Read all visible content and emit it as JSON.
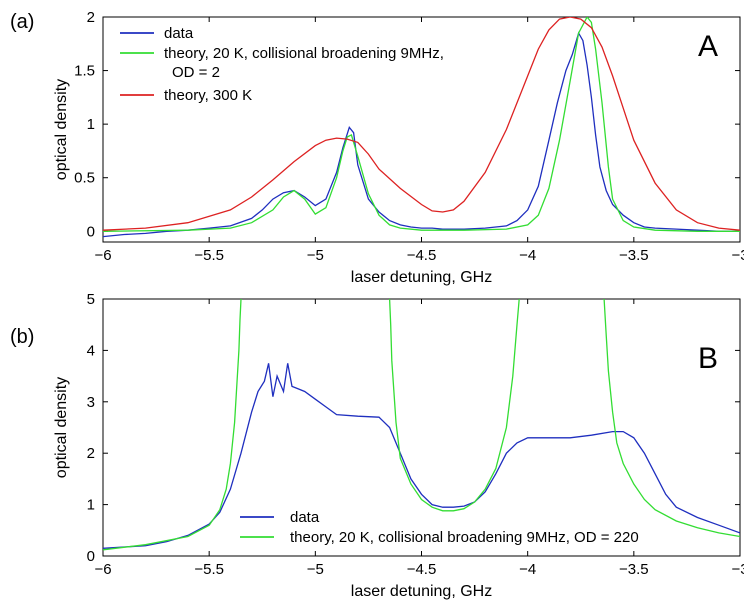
{
  "chart_data": [
    {
      "type": "line",
      "panel_label": "(a)",
      "corner_label": "A",
      "xlabel": "laser detuning, GHz",
      "ylabel": "optical density",
      "xlim": [
        -6,
        -3
      ],
      "ylim": [
        -0.1,
        2
      ],
      "xticks": [
        -6,
        -5.5,
        -5,
        -4.5,
        -4,
        -3.5,
        -3
      ],
      "xtick_labels": [
        "−6",
        "−5.5",
        "−5",
        "−4.5",
        "−4",
        "−3.5",
        "−3"
      ],
      "yticks": [
        0,
        0.5,
        1,
        1.5,
        2
      ],
      "ytick_labels": [
        "0",
        "0.5",
        "1",
        "1.5",
        "2"
      ],
      "grid": false,
      "legend_position": "top-left",
      "series": [
        {
          "name": "data",
          "color": "#1f2fbf",
          "x": [
            -6,
            -5.9,
            -5.8,
            -5.7,
            -5.6,
            -5.5,
            -5.4,
            -5.3,
            -5.25,
            -5.2,
            -5.15,
            -5.1,
            -5.05,
            -5.0,
            -4.95,
            -4.9,
            -4.87,
            -4.84,
            -4.82,
            -4.8,
            -4.75,
            -4.7,
            -4.65,
            -4.6,
            -4.55,
            -4.5,
            -4.45,
            -4.4,
            -4.35,
            -4.3,
            -4.2,
            -4.1,
            -4.05,
            -4.0,
            -3.95,
            -3.9,
            -3.86,
            -3.82,
            -3.79,
            -3.76,
            -3.74,
            -3.72,
            -3.7,
            -3.68,
            -3.66,
            -3.63,
            -3.6,
            -3.55,
            -3.5,
            -3.45,
            -3.4,
            -3.3,
            -3.2,
            -3.1,
            -3.0
          ],
          "y": [
            -0.05,
            -0.03,
            -0.02,
            0,
            0.01,
            0.03,
            0.05,
            0.12,
            0.2,
            0.3,
            0.36,
            0.38,
            0.32,
            0.24,
            0.3,
            0.55,
            0.78,
            0.97,
            0.92,
            0.62,
            0.3,
            0.18,
            0.1,
            0.06,
            0.04,
            0.03,
            0.03,
            0.02,
            0.02,
            0.02,
            0.03,
            0.05,
            0.1,
            0.2,
            0.42,
            0.85,
            1.2,
            1.5,
            1.65,
            1.85,
            1.78,
            1.55,
            1.25,
            0.9,
            0.6,
            0.38,
            0.25,
            0.15,
            0.08,
            0.04,
            0.03,
            0.02,
            0.01,
            0.0,
            0.0
          ]
        },
        {
          "name": "theory, 20 K, collisional broadening 9MHz,\nOD = 2",
          "color": "#33dd33",
          "x": [
            -6,
            -5.6,
            -5.4,
            -5.3,
            -5.2,
            -5.15,
            -5.1,
            -5.05,
            -5.0,
            -4.95,
            -4.9,
            -4.87,
            -4.85,
            -4.83,
            -4.8,
            -4.75,
            -4.7,
            -4.65,
            -4.6,
            -4.5,
            -4.3,
            -4.1,
            -4.0,
            -3.95,
            -3.9,
            -3.85,
            -3.8,
            -3.76,
            -3.72,
            -3.7,
            -3.68,
            -3.65,
            -3.62,
            -3.6,
            -3.55,
            -3.5,
            -3.4,
            -3.2,
            -3.0
          ],
          "y": [
            0,
            0.01,
            0.03,
            0.08,
            0.2,
            0.32,
            0.38,
            0.3,
            0.16,
            0.22,
            0.5,
            0.75,
            0.88,
            0.9,
            0.7,
            0.35,
            0.15,
            0.06,
            0.03,
            0.01,
            0.01,
            0.02,
            0.06,
            0.15,
            0.4,
            0.85,
            1.4,
            1.85,
            2.0,
            1.95,
            1.7,
            1.2,
            0.6,
            0.3,
            0.1,
            0.04,
            0.01,
            0.0,
            0.0
          ]
        },
        {
          "name": "theory, 300 K",
          "color": "#dd2222",
          "x": [
            -6,
            -5.8,
            -5.6,
            -5.4,
            -5.3,
            -5.2,
            -5.1,
            -5.0,
            -4.95,
            -4.9,
            -4.85,
            -4.8,
            -4.75,
            -4.7,
            -4.6,
            -4.5,
            -4.45,
            -4.4,
            -4.35,
            -4.3,
            -4.2,
            -4.1,
            -4.0,
            -3.95,
            -3.9,
            -3.85,
            -3.8,
            -3.75,
            -3.7,
            -3.65,
            -3.6,
            -3.55,
            -3.5,
            -3.4,
            -3.3,
            -3.2,
            -3.1,
            -3.0
          ],
          "y": [
            0.01,
            0.03,
            0.08,
            0.2,
            0.32,
            0.48,
            0.65,
            0.8,
            0.85,
            0.87,
            0.86,
            0.83,
            0.72,
            0.58,
            0.4,
            0.25,
            0.19,
            0.18,
            0.2,
            0.28,
            0.55,
            0.95,
            1.45,
            1.7,
            1.88,
            1.98,
            2.0,
            1.98,
            1.9,
            1.72,
            1.45,
            1.15,
            0.85,
            0.45,
            0.2,
            0.08,
            0.03,
            0.01
          ]
        }
      ]
    },
    {
      "type": "line",
      "panel_label": "(b)",
      "corner_label": "B",
      "xlabel": "laser detuning, GHz",
      "ylabel": "optical density",
      "xlim": [
        -6,
        -3
      ],
      "ylim": [
        0,
        5
      ],
      "xticks": [
        -6,
        -5.5,
        -5,
        -4.5,
        -4,
        -3.5,
        -3
      ],
      "xtick_labels": [
        "−6",
        "−5.5",
        "−5",
        "−4.5",
        "−4",
        "−3.5",
        "−3"
      ],
      "yticks": [
        0,
        1,
        2,
        3,
        4,
        5
      ],
      "ytick_labels": [
        "0",
        "1",
        "2",
        "3",
        "4",
        "5"
      ],
      "grid": false,
      "legend_position": "bottom-center",
      "series": [
        {
          "name": "data",
          "color": "#1f2fbf",
          "x": [
            -6,
            -5.8,
            -5.7,
            -5.6,
            -5.5,
            -5.45,
            -5.4,
            -5.35,
            -5.3,
            -5.27,
            -5.24,
            -5.22,
            -5.2,
            -5.18,
            -5.15,
            -5.13,
            -5.11,
            -5.08,
            -5.05,
            -5.0,
            -4.95,
            -4.9,
            -4.8,
            -4.7,
            -4.65,
            -4.6,
            -4.55,
            -4.5,
            -4.45,
            -4.4,
            -4.35,
            -4.3,
            -4.25,
            -4.2,
            -4.15,
            -4.1,
            -4.05,
            -4.0,
            -3.9,
            -3.8,
            -3.7,
            -3.6,
            -3.55,
            -3.5,
            -3.45,
            -3.4,
            -3.35,
            -3.3,
            -3.2,
            -3.1,
            -3.0
          ],
          "y": [
            0.15,
            0.2,
            0.28,
            0.4,
            0.62,
            0.85,
            1.3,
            2.0,
            2.8,
            3.2,
            3.4,
            3.75,
            3.1,
            3.5,
            3.2,
            3.75,
            3.3,
            3.25,
            3.2,
            3.05,
            2.9,
            2.75,
            2.72,
            2.7,
            2.5,
            2.0,
            1.5,
            1.2,
            1.0,
            0.95,
            0.95,
            0.97,
            1.05,
            1.25,
            1.6,
            2.0,
            2.2,
            2.3,
            2.3,
            2.3,
            2.35,
            2.42,
            2.42,
            2.3,
            2.0,
            1.6,
            1.2,
            0.95,
            0.75,
            0.6,
            0.45
          ]
        },
        {
          "name": "theory, 20 K, collisional broadening 9MHz, OD = 220",
          "color": "#33dd33",
          "x": [
            -6,
            -5.8,
            -5.6,
            -5.5,
            -5.45,
            -5.42,
            -5.4,
            -5.38,
            -5.36,
            -5.355,
            -5.35,
            null,
            -4.65,
            -4.645,
            -4.64,
            -4.62,
            -4.6,
            -4.55,
            -4.5,
            -4.45,
            -4.4,
            -4.35,
            -4.3,
            -4.25,
            -4.2,
            -4.15,
            -4.1,
            -4.07,
            -4.05,
            -4.04,
            null,
            -3.64,
            -3.63,
            -3.62,
            -3.6,
            -3.58,
            -3.55,
            -3.5,
            -3.45,
            -3.4,
            -3.3,
            -3.2,
            -3.1,
            -3.0
          ],
          "y": [
            0.12,
            0.22,
            0.38,
            0.6,
            0.9,
            1.3,
            1.8,
            2.6,
            4.0,
            4.6,
            5.0,
            null,
            5.0,
            4.5,
            3.8,
            2.6,
            1.9,
            1.4,
            1.1,
            0.95,
            0.88,
            0.88,
            0.92,
            1.05,
            1.3,
            1.7,
            2.5,
            3.5,
            4.5,
            5.0,
            null,
            5.0,
            4.3,
            3.6,
            2.8,
            2.2,
            1.8,
            1.4,
            1.1,
            0.9,
            0.68,
            0.55,
            0.45,
            0.38
          ]
        }
      ]
    }
  ]
}
